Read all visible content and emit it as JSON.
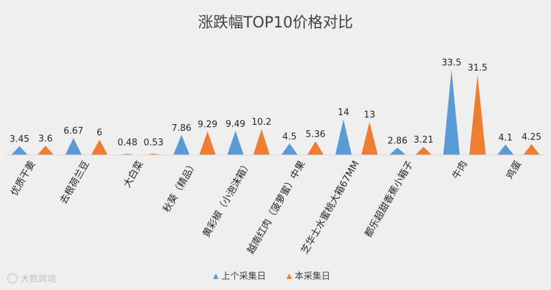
{
  "watermark": "大数跨境",
  "colors": {
    "series1": "#5b9bd5",
    "series2": "#ed7d31"
  },
  "chart_data": {
    "type": "area",
    "title": "涨跌幅TOP10价格对比",
    "categories": [
      "优质干姜",
      "去根荷兰豆",
      "大白菜",
      "秋葵（精品）",
      "黄彩椒（小泡沫箱）",
      "越南红肉（菠萝蜜）中果",
      "芝华士水蜜桃大箱67MM",
      "都乐超甜香蕉小箱子",
      "牛肉",
      "鸡蛋"
    ],
    "series": [
      {
        "name": "上个采集日",
        "values": [
          3.45,
          6.67,
          0.48,
          7.86,
          9.49,
          4.5,
          14,
          2.86,
          33.5,
          4.1
        ],
        "labels": [
          "3.45",
          "6.67",
          "0.48",
          "7.86",
          "9.49",
          "4.5",
          "14",
          "2.86",
          "33.5",
          "4.1"
        ]
      },
      {
        "name": "本采集日",
        "values": [
          3.6,
          6,
          0.53,
          9.29,
          10.2,
          5.36,
          13,
          3.21,
          31.5,
          4.25
        ],
        "labels": [
          "3.6",
          "6",
          "0.53",
          "9.29",
          "10.2",
          "5.36",
          "13",
          "3.21",
          "31.5",
          "4.25"
        ]
      }
    ],
    "ylim": [
      0,
      35
    ],
    "legend": "bottom",
    "grid": false
  }
}
